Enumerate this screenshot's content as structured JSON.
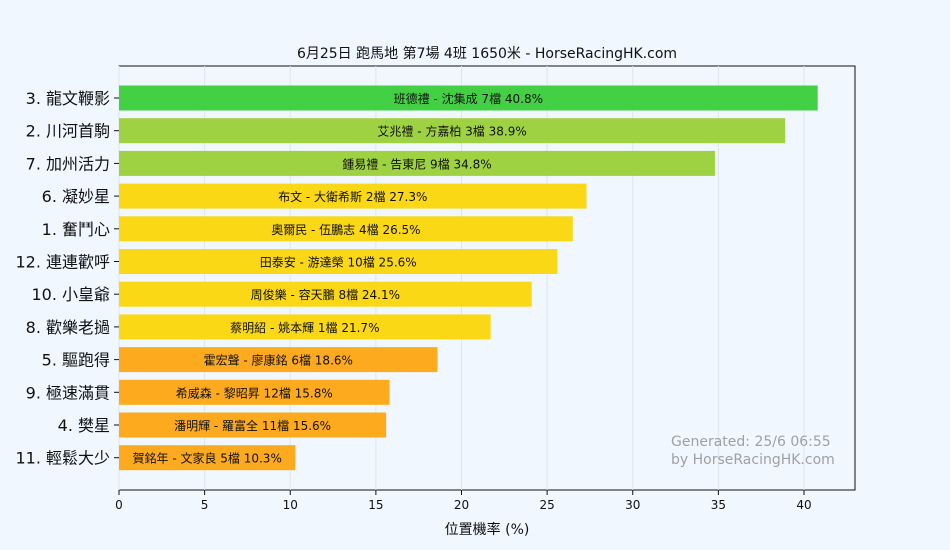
{
  "chart_data": {
    "type": "bar",
    "orientation": "horizontal",
    "title": "6月25日  跑馬地  第7場  4班  1650米 - HorseRacingHK.com",
    "xlabel": "位置機率 (%)",
    "ylabel": "",
    "xlim": [
      0,
      43
    ],
    "xticks": [
      "0",
      "5",
      "10",
      "15",
      "20",
      "25",
      "30",
      "35",
      "40"
    ],
    "grid": "vertical",
    "categories": [
      "3. 龍文鞭影",
      "2. 川河首駒",
      "7. 加州活力",
      "6. 凝妙星",
      "1. 奮鬥心",
      "12. 連連歡呼",
      "10. 小皇爺",
      "8. 歡樂老撾",
      "5. 驅跑得",
      "9. 極速滿貫",
      "4. 樊星",
      "11. 輕鬆大少"
    ],
    "values": [
      40.8,
      38.9,
      34.8,
      27.3,
      26.5,
      25.6,
      24.1,
      21.7,
      18.6,
      15.8,
      15.6,
      10.3
    ],
    "bar_labels": [
      "班德禮 - 沈集成 7檔  40.8%",
      "艾兆禮 - 方嘉柏 3檔  38.9%",
      "鍾易禮 - 告東尼 9檔  34.8%",
      "布文 - 大衛希斯 2檔  27.3%",
      "奧爾民 - 伍鵬志 4檔  26.5%",
      "田泰安 - 游達榮 10檔  25.6%",
      "周俊樂 - 容天鵬 8檔  24.1%",
      "蔡明紹 - 姚本輝 1檔  21.7%",
      "霍宏聲 - 廖康銘 6檔  18.6%",
      "希威森 - 黎昭昇 12檔  15.8%",
      "潘明輝 - 羅富全 11檔  15.6%",
      "賀銘年 - 文家良 5檔  10.3%"
    ],
    "colors": [
      "#44d044",
      "#9fd242",
      "#9fd242",
      "#fad816",
      "#fad816",
      "#fad816",
      "#fad816",
      "#fad816",
      "#fdaa1f",
      "#fdaa1f",
      "#fdaa1f",
      "#fdaa1f"
    ],
    "annotation": [
      "Generated: 25/6 06:55",
      "by HorseRacingHK.com"
    ]
  }
}
